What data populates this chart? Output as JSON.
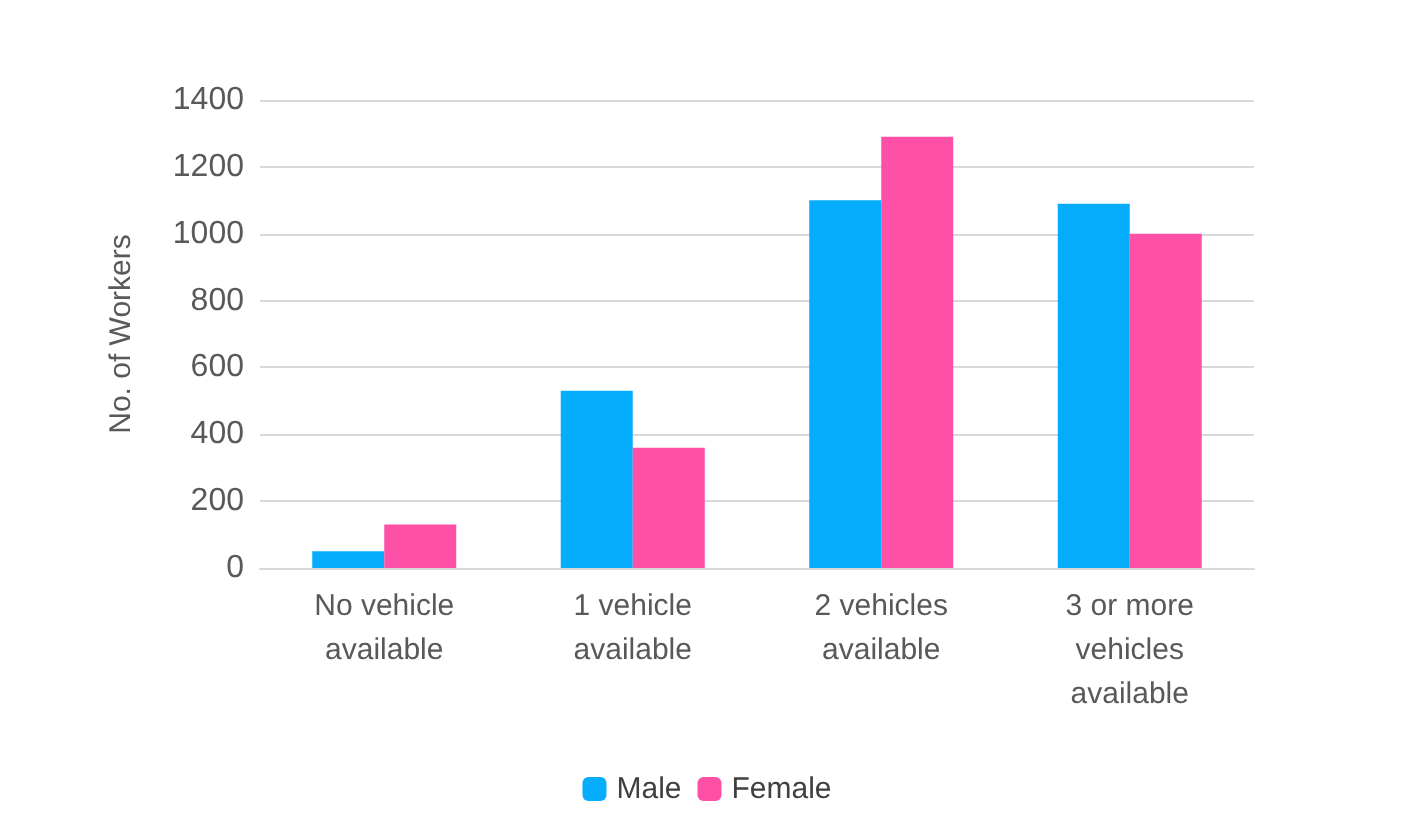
{
  "chart_data": {
    "type": "bar",
    "ylabel": "No. of Workers",
    "categories": [
      "No vehicle available",
      "1 vehicle available",
      "2 vehicles available",
      "3 or more vehicles available"
    ],
    "series": [
      {
        "name": "Male",
        "color": "#05adfc",
        "values": [
          50,
          530,
          1100,
          1090
        ]
      },
      {
        "name": "Female",
        "color": "#ff50a8",
        "values": [
          130,
          360,
          1290,
          1000
        ]
      }
    ],
    "ylim": [
      0,
      1400
    ],
    "yticks": [
      0,
      200,
      400,
      600,
      800,
      1000,
      1200,
      1400
    ],
    "grid": true,
    "legend": "bottom"
  }
}
